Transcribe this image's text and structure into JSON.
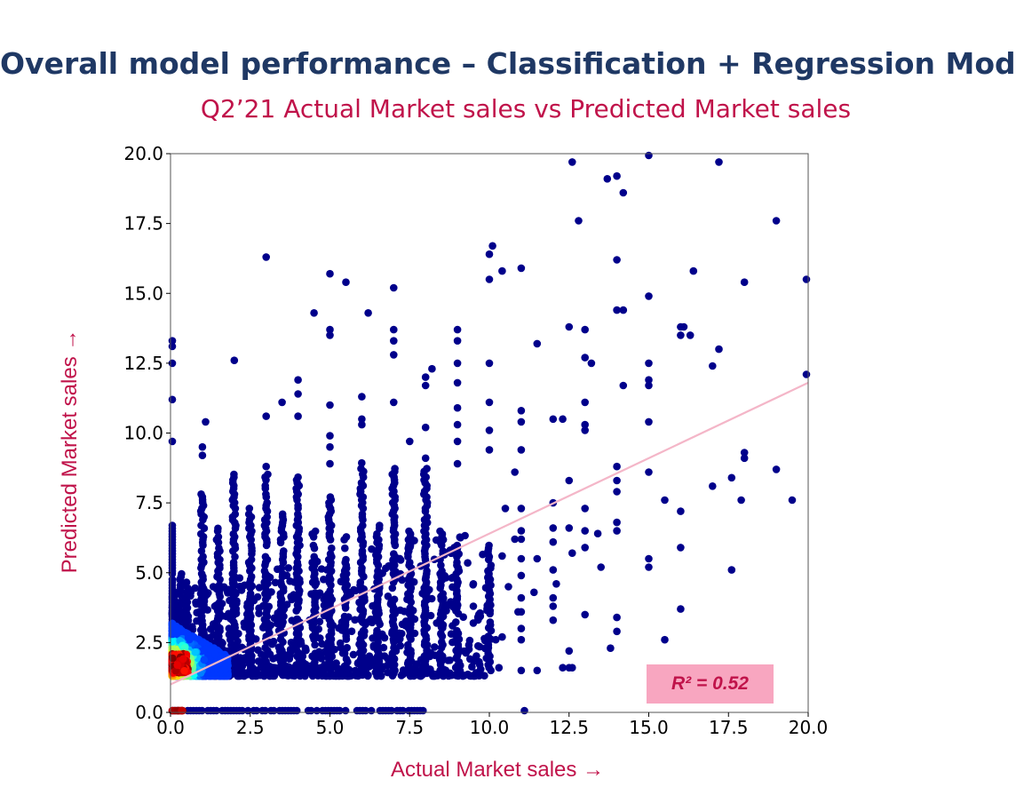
{
  "slide": {
    "title": "Overall model performance – Classification + Regression Model",
    "subtitle": "Q2’21 Actual Market sales vs Predicted Market sales",
    "r2_label": "R² = 0.52"
  },
  "chart_data": {
    "type": "scatter",
    "title": "",
    "xlabel": "Actual Market sales →",
    "ylabel": "Predicted Market sales →",
    "xlim": [
      0,
      20
    ],
    "ylim": [
      0,
      20
    ],
    "x_ticks": [
      "0.0",
      "2.5",
      "5.0",
      "7.5",
      "10.0",
      "12.5",
      "15.0",
      "17.5",
      "20.0"
    ],
    "y_ticks": [
      "0.0",
      "2.5",
      "5.0",
      "7.5",
      "10.0",
      "12.5",
      "15.0",
      "17.5",
      "20.0"
    ],
    "grid": false,
    "point_color": "#00008b",
    "density_colormap": "jet",
    "trend_line": {
      "color": "#f4b6c8",
      "from": [
        0,
        1.0
      ],
      "to": [
        20,
        11.8
      ]
    },
    "r_squared": 0.52,
    "points": [
      [
        0,
        13.3
      ],
      [
        0,
        13.1
      ],
      [
        0,
        12.5
      ],
      [
        0,
        11.2
      ],
      [
        0,
        9.7
      ],
      [
        1.1,
        10.4
      ],
      [
        1,
        9.5
      ],
      [
        1,
        9.2
      ],
      [
        2,
        12.6
      ],
      [
        3,
        16.3
      ],
      [
        3,
        10.6
      ],
      [
        3,
        8.8
      ],
      [
        3.5,
        11.1
      ],
      [
        4,
        11.9
      ],
      [
        4,
        11.4
      ],
      [
        4,
        10.6
      ],
      [
        4.5,
        14.3
      ],
      [
        5,
        15.7
      ],
      [
        5.5,
        15.4
      ],
      [
        5,
        13.7
      ],
      [
        5,
        13.5
      ],
      [
        5,
        11
      ],
      [
        5,
        9.9
      ],
      [
        5,
        9.5
      ],
      [
        5,
        8.9
      ],
      [
        6,
        11.3
      ],
      [
        6,
        10.5
      ],
      [
        6,
        10.3
      ],
      [
        6.2,
        14.3
      ],
      [
        7,
        15.2
      ],
      [
        7,
        13.7
      ],
      [
        7,
        13.3
      ],
      [
        7,
        12.8
      ],
      [
        7,
        11.1
      ],
      [
        7.5,
        9.7
      ],
      [
        8,
        12
      ],
      [
        8,
        11.7
      ],
      [
        8.2,
        12.3
      ],
      [
        8,
        10.2
      ],
      [
        8,
        9.1
      ],
      [
        9,
        13.7
      ],
      [
        9,
        13.3
      ],
      [
        9,
        12.5
      ],
      [
        9,
        11.8
      ],
      [
        9,
        10.9
      ],
      [
        9,
        10.3
      ],
      [
        9,
        9.7
      ],
      [
        9,
        8.9
      ],
      [
        10,
        16.4
      ],
      [
        10.1,
        16.7
      ],
      [
        10.4,
        15.8
      ],
      [
        10,
        15.5
      ],
      [
        10,
        12.5
      ],
      [
        10,
        11.1
      ],
      [
        10,
        10.1
      ],
      [
        10,
        9.4
      ],
      [
        11,
        15.9
      ],
      [
        11,
        10.8
      ],
      [
        11,
        10.4
      ],
      [
        11,
        9.4
      ],
      [
        11.5,
        13.2
      ],
      [
        12,
        10.5
      ],
      [
        12.3,
        10.5
      ],
      [
        12.5,
        13.8
      ],
      [
        12.5,
        8.3
      ],
      [
        12.6,
        19.7
      ],
      [
        12.8,
        17.6
      ],
      [
        13,
        13.7
      ],
      [
        13,
        12.7
      ],
      [
        13.2,
        12.5
      ],
      [
        13,
        11.1
      ],
      [
        13,
        10.3
      ],
      [
        13,
        10.1
      ],
      [
        13.7,
        19.1
      ],
      [
        14,
        19.2
      ],
      [
        14.2,
        18.6
      ],
      [
        14,
        16.2
      ],
      [
        14,
        14.4
      ],
      [
        14.2,
        14.4
      ],
      [
        14.2,
        11.7
      ],
      [
        14,
        8.8
      ],
      [
        14,
        8.3
      ],
      [
        15,
        20
      ],
      [
        15,
        14.9
      ],
      [
        15,
        12.5
      ],
      [
        15,
        11.9
      ],
      [
        15,
        11.7
      ],
      [
        15,
        10.4
      ],
      [
        15,
        8.6
      ],
      [
        16,
        13.8
      ],
      [
        16.1,
        13.8
      ],
      [
        16,
        13.5
      ],
      [
        16.3,
        13.5
      ],
      [
        16.4,
        15.8
      ],
      [
        17.2,
        19.7
      ],
      [
        17.2,
        13
      ],
      [
        17,
        12.4
      ],
      [
        17,
        8.1
      ],
      [
        17.6,
        8.4
      ],
      [
        18,
        15.4
      ],
      [
        18,
        9.3
      ],
      [
        18,
        9.1
      ],
      [
        17.9,
        7.6
      ],
      [
        19,
        17.6
      ],
      [
        19,
        8.7
      ],
      [
        19.5,
        7.6
      ],
      [
        20,
        15.5
      ],
      [
        20,
        12.1
      ],
      [
        16,
        7.2
      ],
      [
        16,
        5.9
      ],
      [
        16,
        3.7
      ],
      [
        15.5,
        2.6
      ],
      [
        15,
        5.5
      ],
      [
        15,
        5.2
      ],
      [
        17.6,
        5.1
      ],
      [
        15.5,
        7.6
      ],
      [
        14,
        7.9
      ],
      [
        14,
        6.8
      ],
      [
        13.4,
        6.4
      ],
      [
        13,
        6.5
      ],
      [
        13,
        7.3
      ],
      [
        13,
        5.9
      ],
      [
        13,
        3.5
      ],
      [
        14,
        6.5
      ],
      [
        14,
        3.4
      ],
      [
        14,
        2.9
      ],
      [
        13.5,
        5.2
      ],
      [
        12,
        7.5
      ],
      [
        12,
        6.6
      ],
      [
        12.5,
        6.6
      ],
      [
        12,
        6.1
      ],
      [
        12.6,
        5.7
      ],
      [
        12,
        5.1
      ],
      [
        12.1,
        4.6
      ],
      [
        12,
        4.1
      ],
      [
        12,
        3.8
      ],
      [
        12,
        3.3
      ],
      [
        12.5,
        2.2
      ],
      [
        12.5,
        1.6
      ],
      [
        11,
        7.3
      ],
      [
        11,
        6.5
      ],
      [
        11,
        6.2
      ],
      [
        11,
        5.5
      ],
      [
        11.5,
        5.5
      ],
      [
        11,
        4.9
      ],
      [
        11.4,
        4.3
      ],
      [
        11,
        4.1
      ],
      [
        11,
        3.6
      ],
      [
        11,
        3
      ],
      [
        11,
        2.6
      ],
      [
        11,
        1.5
      ],
      [
        11.5,
        1.5
      ],
      [
        10.5,
        7.3
      ],
      [
        10.8,
        6.2
      ],
      [
        10.4,
        5.6
      ],
      [
        10.6,
        4.5
      ],
      [
        10.9,
        3.6
      ],
      [
        10.4,
        2.7
      ],
      [
        10.3,
        1.6
      ],
      [
        10.8,
        8.6
      ],
      [
        12.3,
        1.6
      ],
      [
        12.6,
        1.6
      ],
      [
        9.5,
        4.6
      ],
      [
        9.5,
        3.2
      ],
      [
        9.7,
        1.7
      ],
      [
        9.3,
        2.2
      ],
      [
        8.9,
        5.9
      ],
      [
        10.2,
        2.6
      ],
      [
        11.1,
        0
      ],
      [
        9.5,
        3.8
      ],
      [
        13.8,
        2.3
      ]
    ],
    "column_points": [
      {
        "x": 0,
        "ymin": 1.4,
        "ymax": 6.8
      },
      {
        "x": 0.3,
        "ymin": 1.4,
        "ymax": 5
      },
      {
        "x": 0.5,
        "ymin": 1.4,
        "ymax": 4.8
      },
      {
        "x": 1,
        "ymin": 1.3,
        "ymax": 7.9
      },
      {
        "x": 1.5,
        "ymin": 1.4,
        "ymax": 6.6
      },
      {
        "x": 2,
        "ymin": 1.4,
        "ymax": 8.6
      },
      {
        "x": 2.5,
        "ymin": 1.4,
        "ymax": 7.4
      },
      {
        "x": 3,
        "ymin": 1.4,
        "ymax": 8.6
      },
      {
        "x": 3.5,
        "ymin": 1.4,
        "ymax": 7.2
      },
      {
        "x": 4,
        "ymin": 1.4,
        "ymax": 8.5
      },
      {
        "x": 4.5,
        "ymin": 1.4,
        "ymax": 6.5
      },
      {
        "x": 5,
        "ymin": 1.4,
        "ymax": 7.8
      },
      {
        "x": 5.5,
        "ymin": 1.4,
        "ymax": 6.4
      },
      {
        "x": 6,
        "ymin": 1.4,
        "ymax": 9
      },
      {
        "x": 6.5,
        "ymin": 1.4,
        "ymax": 6.7
      },
      {
        "x": 7,
        "ymin": 1.4,
        "ymax": 8.8
      },
      {
        "x": 7.5,
        "ymin": 1.4,
        "ymax": 6.5
      },
      {
        "x": 8,
        "ymin": 1.4,
        "ymax": 8.9
      },
      {
        "x": 8.5,
        "ymin": 1.4,
        "ymax": 6.6
      },
      {
        "x": 9,
        "ymin": 1.4,
        "ymax": 6
      },
      {
        "x": 10,
        "ymin": 1.5,
        "ymax": 6.1
      }
    ],
    "zero_band": {
      "y": 0,
      "xmin": 0,
      "xmax": 8
    },
    "density_cluster": {
      "x": [
        0,
        1.8
      ],
      "y": [
        1.3,
        3.2
      ]
    }
  }
}
